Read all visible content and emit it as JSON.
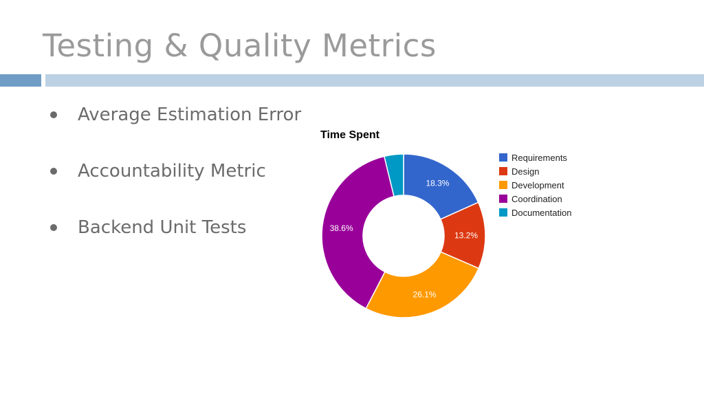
{
  "slide": {
    "title": "Testing & Quality Metrics",
    "bullets": [
      "Average Estimation Error",
      "Accountability Metric",
      "Backend Unit Tests"
    ]
  },
  "chart_data": {
    "type": "pie",
    "title": "Time Spent",
    "donut": true,
    "legend_position": "right",
    "series": [
      {
        "name": "Requirements",
        "value": 18.3,
        "label": "18.3%",
        "color": "#3366cc"
      },
      {
        "name": "Design",
        "value": 13.2,
        "label": "13.2%",
        "color": "#dc3912"
      },
      {
        "name": "Development",
        "value": 26.1,
        "label": "26.1%",
        "color": "#ff9900"
      },
      {
        "name": "Coordination",
        "value": 38.6,
        "label": "38.6%",
        "color": "#990099"
      },
      {
        "name": "Documentation",
        "value": 3.8,
        "label": "",
        "color": "#0099c6"
      }
    ]
  }
}
